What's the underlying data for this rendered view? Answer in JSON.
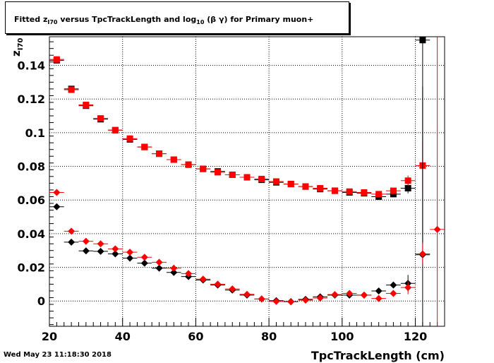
{
  "chart_data": {
    "type": "scatter",
    "title": {
      "prefix": "Fitted  z",
      "sub1": "I70",
      "mid": "  versus TpcTrackLength and log",
      "sub2": "10",
      "suffix": " (β γ) for Primary muon+"
    },
    "xlabel": "TpcTrackLength (cm)",
    "ylabel": {
      "main": "z",
      "sub": "I70"
    },
    "xlim": [
      20,
      128
    ],
    "ylim": [
      -0.015,
      0.157
    ],
    "x_ticks": [
      20,
      40,
      60,
      80,
      100,
      120
    ],
    "y_ticks": [
      0,
      0.02,
      0.04,
      0.06,
      0.08,
      0.1,
      0.12,
      0.14
    ],
    "y_tick_labels": [
      "0",
      "0.02",
      "0.04",
      "0.06",
      "0.08",
      "0.1",
      "0.12",
      "0.14"
    ],
    "grid": true,
    "x_bin_halfwidth": 2,
    "series": [
      {
        "marker": "square",
        "color": "#000000",
        "x": [
          22,
          26,
          30,
          34,
          38,
          42,
          46,
          50,
          54,
          58,
          62,
          66,
          70,
          74,
          78,
          82,
          86,
          90,
          94,
          98,
          102,
          106,
          110,
          114,
          118,
          122
        ],
        "y": [
          0.143,
          0.126,
          0.116,
          0.108,
          0.1015,
          0.096,
          0.0915,
          0.0875,
          0.084,
          0.081,
          0.0785,
          0.077,
          0.075,
          0.0735,
          0.072,
          0.0705,
          0.0695,
          0.068,
          0.0665,
          0.0655,
          0.0645,
          0.064,
          0.062,
          0.0635,
          0.067,
          0.155
        ],
        "yerr": [
          0.001,
          0.0008,
          0.0008,
          0.0008,
          0.0008,
          0.0008,
          0.0008,
          0.0008,
          0.0008,
          0.0008,
          0.0008,
          0.0008,
          0.0008,
          0.0008,
          0.0008,
          0.0008,
          0.0008,
          0.0008,
          0.0008,
          0.0008,
          0.0008,
          0.0008,
          0.001,
          0.0015,
          0.003,
          0.12
        ]
      },
      {
        "marker": "square",
        "color": "#ff0000",
        "x": [
          22,
          26,
          30,
          34,
          38,
          42,
          46,
          50,
          54,
          58,
          62,
          66,
          70,
          74,
          78,
          82,
          86,
          90,
          94,
          98,
          102,
          106,
          110,
          114,
          118,
          122
        ],
        "y": [
          0.1435,
          0.1255,
          0.1165,
          0.1085,
          0.1015,
          0.0965,
          0.0915,
          0.0875,
          0.084,
          0.081,
          0.0785,
          0.0765,
          0.075,
          0.0735,
          0.0725,
          0.071,
          0.0695,
          0.068,
          0.067,
          0.0655,
          0.065,
          0.0645,
          0.0635,
          0.0655,
          0.0715,
          0.0805
        ],
        "yerr": [
          0.001,
          0.0008,
          0.0008,
          0.0008,
          0.0008,
          0.0008,
          0.0008,
          0.0008,
          0.0008,
          0.0008,
          0.0008,
          0.0008,
          0.0008,
          0.0008,
          0.0008,
          0.0008,
          0.0008,
          0.0008,
          0.0008,
          0.0008,
          0.0008,
          0.0008,
          0.001,
          0.0015,
          0.003,
          0.015
        ]
      },
      {
        "marker": "diamond",
        "color": "#000000",
        "x": [
          22,
          26,
          30,
          34,
          38,
          42,
          46,
          50,
          54,
          58,
          62,
          66,
          70,
          74,
          78,
          82,
          86,
          90,
          94,
          98,
          102,
          106,
          110,
          114,
          118,
          122
        ],
        "y": [
          0.056,
          0.035,
          0.0298,
          0.0295,
          0.028,
          0.0255,
          0.0225,
          0.0195,
          0.017,
          0.0145,
          0.0125,
          0.0095,
          0.0065,
          0.0035,
          0.0012,
          0.0002,
          -0.0003,
          0.001,
          0.0025,
          0.0035,
          0.0035,
          0.0035,
          0.006,
          0.0095,
          0.0105,
          0.0275
        ],
        "yerr": [
          0.001,
          0.0008,
          0.0008,
          0.0008,
          0.0008,
          0.0008,
          0.0008,
          0.0008,
          0.0008,
          0.0008,
          0.0008,
          0.0008,
          0.0008,
          0.0008,
          0.0008,
          0.0008,
          0.0008,
          0.0008,
          0.0008,
          0.0008,
          0.0008,
          0.0008,
          0.001,
          0.0015,
          0.005,
          0.1
        ]
      },
      {
        "marker": "diamond",
        "color": "#ff0000",
        "x": [
          22,
          26,
          30,
          34,
          38,
          42,
          46,
          50,
          54,
          58,
          62,
          66,
          70,
          74,
          78,
          82,
          86,
          90,
          94,
          98,
          102,
          106,
          110,
          114,
          118,
          122,
          126
        ],
        "y": [
          0.0645,
          0.0415,
          0.0355,
          0.034,
          0.031,
          0.029,
          0.026,
          0.023,
          0.0195,
          0.0163,
          0.013,
          0.01,
          0.0072,
          0.004,
          0.0012,
          -0.0002,
          -0.0005,
          0.0005,
          0.0018,
          0.0038,
          0.0045,
          0.0035,
          0.0015,
          0.0045,
          0.008,
          0.028,
          0.0425
        ],
        "yerr": [
          0.001,
          0.0008,
          0.0008,
          0.0008,
          0.0008,
          0.0008,
          0.0008,
          0.0008,
          0.0008,
          0.0008,
          0.0008,
          0.0008,
          0.0008,
          0.0008,
          0.0008,
          0.0008,
          0.0008,
          0.0008,
          0.0008,
          0.0008,
          0.0008,
          0.0008,
          0.001,
          0.002,
          0.004,
          0.006,
          0.15
        ]
      }
    ]
  },
  "footer": {
    "timestamp": "Wed May 23 11:18:30 2018"
  }
}
